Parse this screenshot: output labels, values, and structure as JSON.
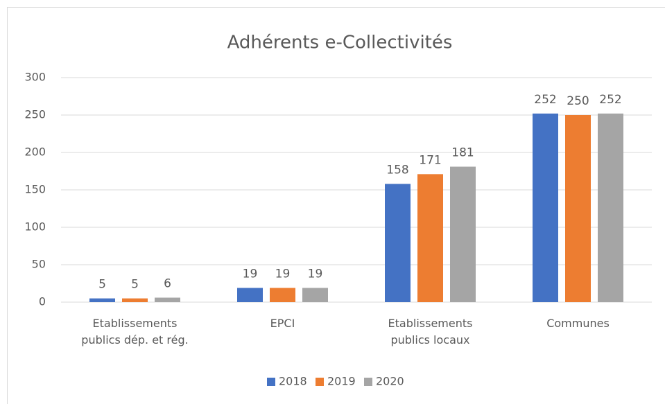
{
  "chart_data": {
    "type": "bar",
    "title": "Adhérents e-Collectivités",
    "categories": [
      "Etablissements publics dép. et rég.",
      "EPCI",
      "Etablissements publics locaux",
      "Communes"
    ],
    "series": [
      {
        "name": "2018",
        "color": "#4472c4",
        "values": [
          5,
          19,
          158,
          252
        ]
      },
      {
        "name": "2019",
        "color": "#ed7d31",
        "values": [
          5,
          19,
          171,
          250
        ]
      },
      {
        "name": "2020",
        "color": "#a5a5a5",
        "values": [
          6,
          19,
          181,
          252
        ]
      }
    ],
    "ylim": [
      0,
      300
    ],
    "yticks": [
      0,
      50,
      100,
      150,
      200,
      250,
      300
    ],
    "grid": true,
    "legend": "bottom"
  }
}
